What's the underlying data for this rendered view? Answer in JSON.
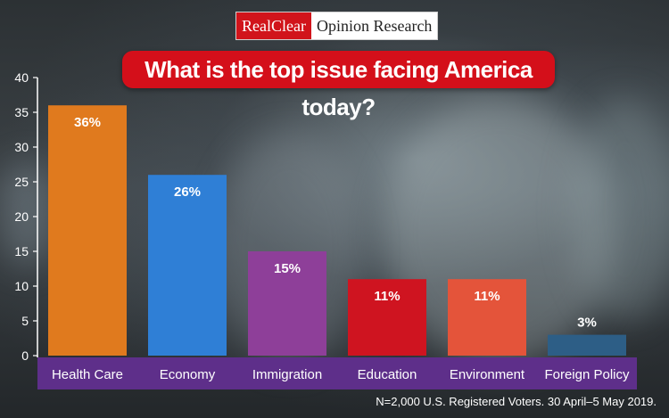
{
  "brand": {
    "part1": "RealClear",
    "part2": "Opinion Research"
  },
  "footnote": "N=2,000 U.S. Registered Voters. 30 April–5 May 2019.",
  "chart_data": {
    "type": "bar",
    "title": "What is the top issue facing America today?",
    "categories": [
      "Health Care",
      "Economy",
      "Immigration",
      "Education",
      "Environment",
      "Foreign Policy"
    ],
    "values": [
      36,
      26,
      15,
      11,
      11,
      3
    ],
    "data_labels": [
      "36%",
      "26%",
      "15%",
      "11%",
      "11%",
      "3%"
    ],
    "colors": [
      "#e07a1e",
      "#2f7fd6",
      "#8e3f99",
      "#cf1420",
      "#e4543a",
      "#2d5e86"
    ],
    "category_band_color": "#5e2f8a",
    "xlabel": "",
    "ylabel": "",
    "ylim": [
      0,
      40
    ],
    "yticks": [
      0,
      5,
      10,
      15,
      20,
      25,
      30,
      35,
      40
    ],
    "grid": false,
    "legend": "none"
  }
}
